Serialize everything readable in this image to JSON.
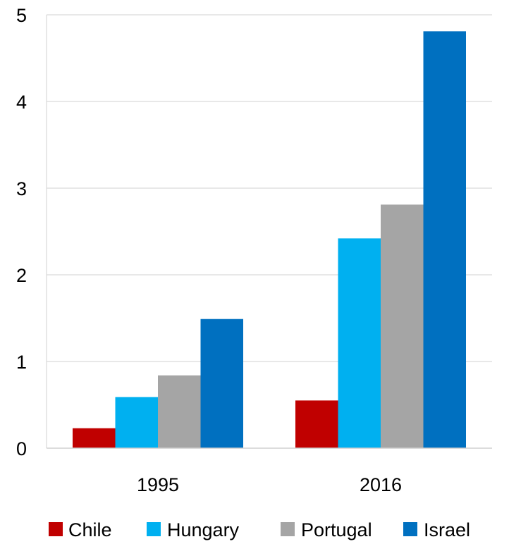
{
  "chart_data": {
    "type": "bar",
    "categories": [
      "1995",
      "2016"
    ],
    "series": [
      {
        "name": "Chile",
        "color": "#c00000",
        "values": [
          0.23,
          0.55
        ]
      },
      {
        "name": "Hungary",
        "color": "#00b0f0",
        "values": [
          0.59,
          2.42
        ]
      },
      {
        "name": "Portugal",
        "color": "#a5a5a5",
        "values": [
          0.84,
          2.81
        ]
      },
      {
        "name": "Israel",
        "color": "#0070c0",
        "values": [
          1.49,
          4.81
        ]
      }
    ],
    "yticks": [
      "0",
      "1",
      "2",
      "3",
      "4",
      "5"
    ],
    "ylim": [
      0,
      5
    ],
    "grid": true,
    "legend_position": "bottom"
  }
}
